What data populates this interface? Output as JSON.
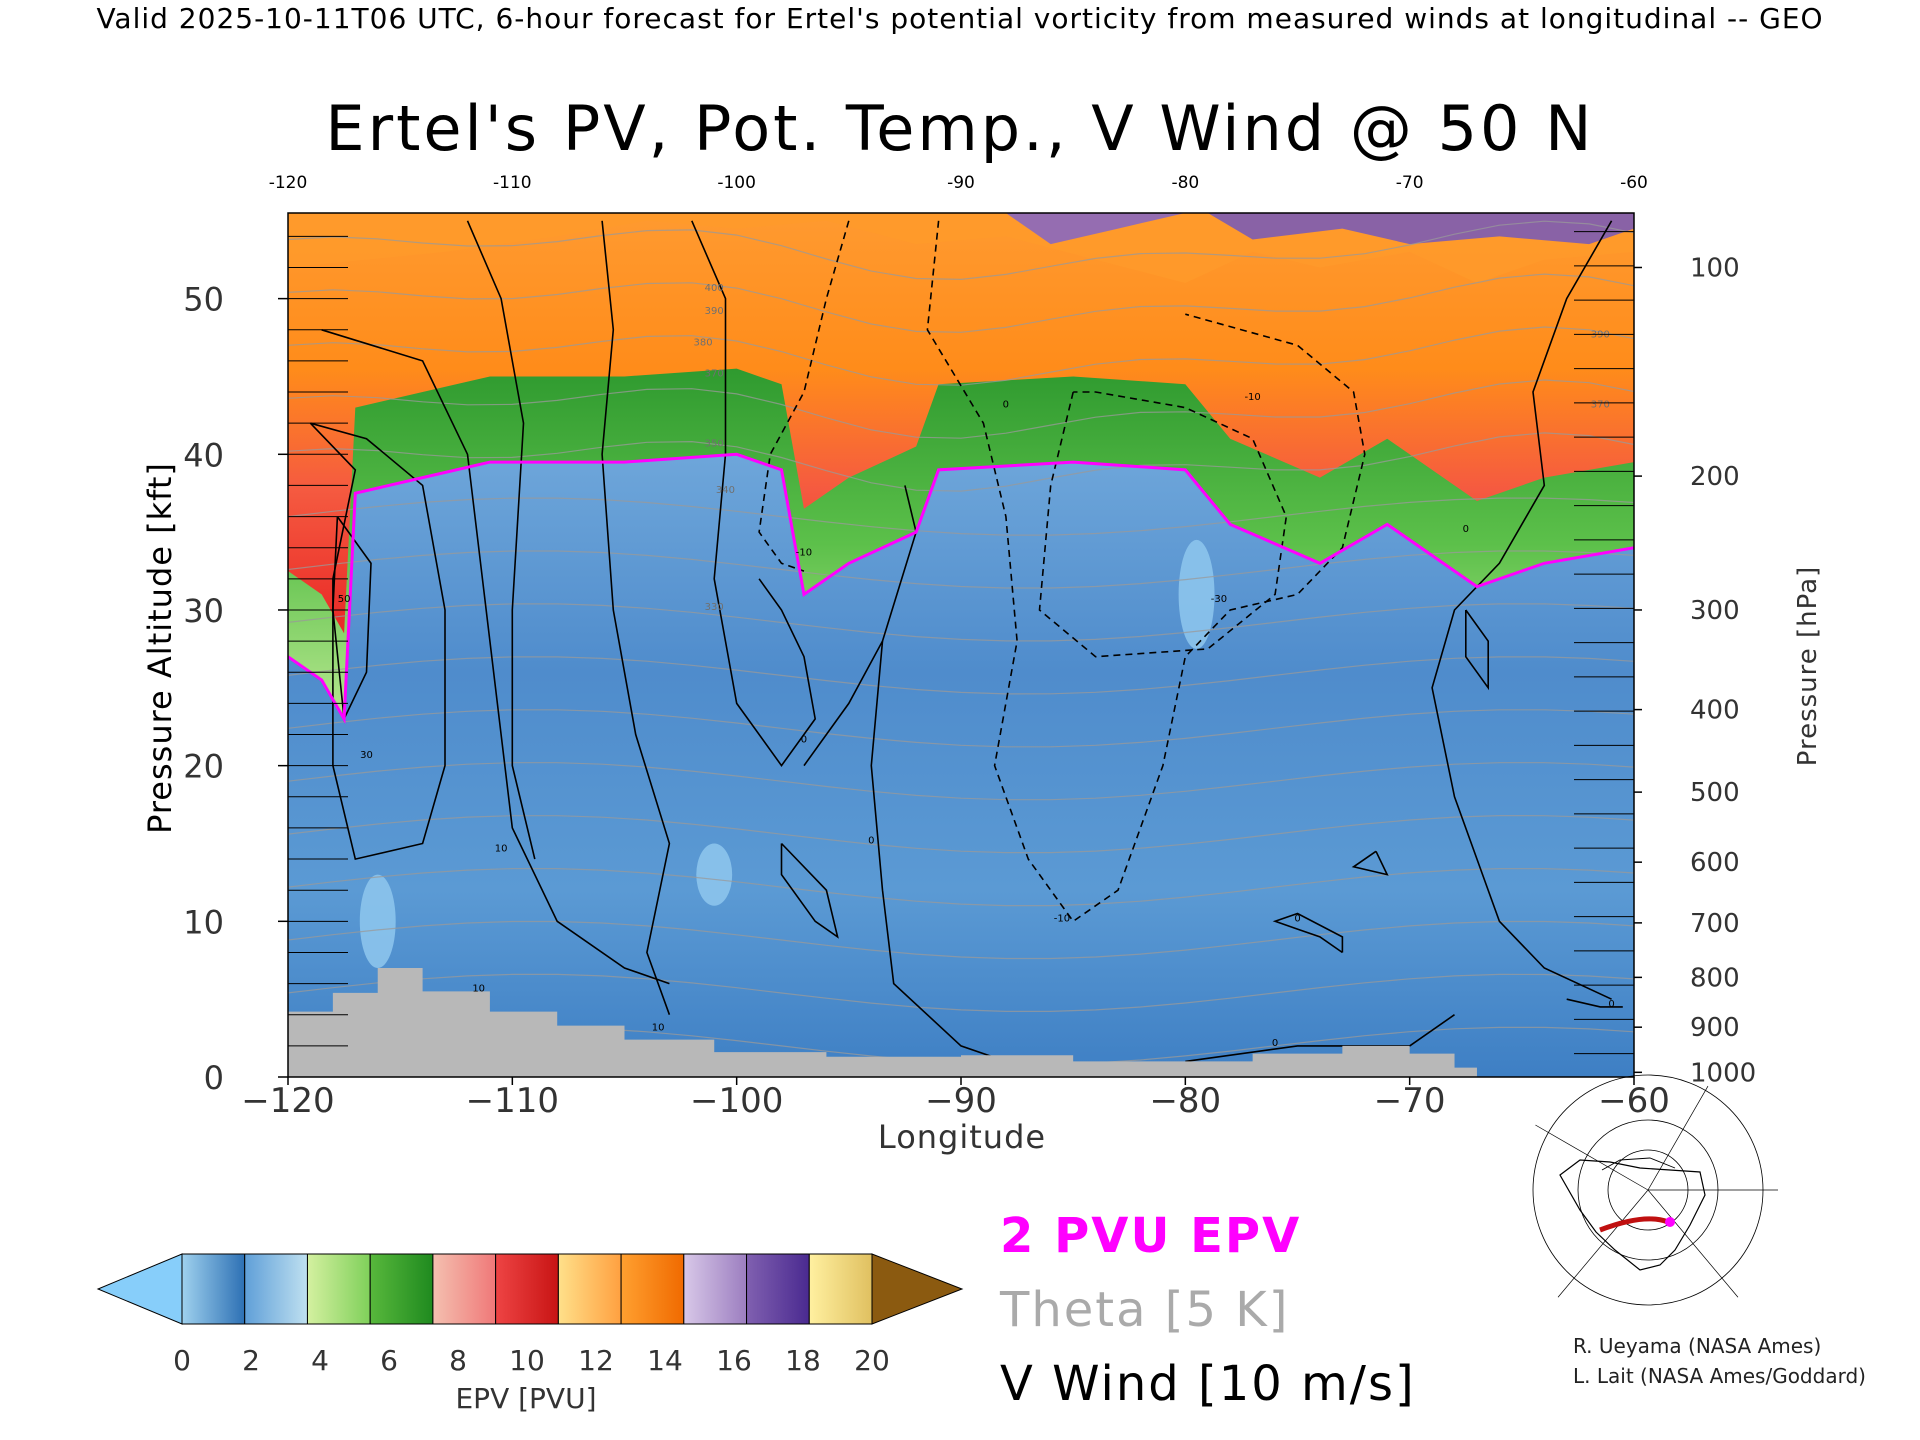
{
  "header": "Valid 2025-10-11T06 UTC, 6-hour forecast for Ertel's potential vorticity from measured winds at longitudinal -- GEO",
  "chart_data": {
    "type": "heatmap",
    "title": "Ertel's PV, Pot. Temp., V Wind @ 50 N",
    "xlabel": "Longitude",
    "ylabel_left": "Pressure Altitude [kft]",
    "ylabel_right": "Pressure [hPa]",
    "xlim": [
      -120,
      -60
    ],
    "ylim_kft": [
      0,
      55.5
    ],
    "x_ticks_bottom": [
      "−120",
      "−110",
      "−100",
      "−90",
      "−80",
      "−70",
      "−60"
    ],
    "x_ticks_top": [
      "-120",
      "-110",
      "-100",
      "-90",
      "-80",
      "-70",
      "-60"
    ],
    "y_ticks_left": [
      {
        "value": 0,
        "label": "0"
      },
      {
        "value": 10,
        "label": "10"
      },
      {
        "value": 20,
        "label": "20"
      },
      {
        "value": 30,
        "label": "30"
      },
      {
        "value": 40,
        "label": "40"
      },
      {
        "value": 50,
        "label": "50"
      }
    ],
    "y_ticks_right": [
      {
        "kft": 52.0,
        "label": "100"
      },
      {
        "kft": 38.6,
        "label": "200"
      },
      {
        "kft": 30.0,
        "label": "300"
      },
      {
        "kft": 23.6,
        "label": "400"
      },
      {
        "kft": 18.3,
        "label": "500"
      },
      {
        "kft": 13.8,
        "label": "600"
      },
      {
        "kft": 9.9,
        "label": "700"
      },
      {
        "kft": 6.4,
        "label": "800"
      },
      {
        "kft": 3.2,
        "label": "900"
      },
      {
        "kft": 0.3,
        "label": "1000"
      }
    ],
    "pv_2pvu_height_kft": [
      {
        "lon": -120,
        "kft": 27.0
      },
      {
        "lon": -118.5,
        "kft": 25.5
      },
      {
        "lon": -117.5,
        "kft": 23.0
      },
      {
        "lon": -117.0,
        "kft": 37.5
      },
      {
        "lon": -114,
        "kft": 38.5
      },
      {
        "lon": -111,
        "kft": 39.5
      },
      {
        "lon": -105,
        "kft": 39.5
      },
      {
        "lon": -100,
        "kft": 40.0
      },
      {
        "lon": -98,
        "kft": 39.0
      },
      {
        "lon": -97,
        "kft": 31.0
      },
      {
        "lon": -95,
        "kft": 33.0
      },
      {
        "lon": -92,
        "kft": 35.0
      },
      {
        "lon": -91,
        "kft": 39.0
      },
      {
        "lon": -85,
        "kft": 39.5
      },
      {
        "lon": -80,
        "kft": 39.0
      },
      {
        "lon": -78,
        "kft": 35.5
      },
      {
        "lon": -74,
        "kft": 33.0
      },
      {
        "lon": -71,
        "kft": 35.5
      },
      {
        "lon": -67,
        "kft": 31.5
      },
      {
        "lon": -64,
        "kft": 33.0
      },
      {
        "lon": -60,
        "kft": 34.0
      }
    ],
    "terrain_kft": [
      {
        "lon": -120,
        "kft": 4.2
      },
      {
        "lon": -118,
        "kft": 5.4
      },
      {
        "lon": -116,
        "kft": 7.0
      },
      {
        "lon": -114,
        "kft": 5.5
      },
      {
        "lon": -111,
        "kft": 4.2
      },
      {
        "lon": -108,
        "kft": 3.3
      },
      {
        "lon": -105,
        "kft": 2.4
      },
      {
        "lon": -101,
        "kft": 1.6
      },
      {
        "lon": -96,
        "kft": 1.3
      },
      {
        "lon": -90,
        "kft": 1.4
      },
      {
        "lon": -85,
        "kft": 1.0
      },
      {
        "lon": -80,
        "kft": 1.0
      },
      {
        "lon": -77,
        "kft": 1.5
      },
      {
        "lon": -73,
        "kft": 2.0
      },
      {
        "lon": -70,
        "kft": 1.5
      },
      {
        "lon": -68,
        "kft": 0.6
      },
      {
        "lon": -67,
        "kft": 0.0
      }
    ],
    "wind_contour_labels": [
      {
        "lon": -117.5,
        "kft": 30.5,
        "label": "50"
      },
      {
        "lon": -116.5,
        "kft": 20.5,
        "label": "30"
      },
      {
        "lon": -110.5,
        "kft": 14.5,
        "label": "10"
      },
      {
        "lon": -111.5,
        "kft": 5.5,
        "label": "10"
      },
      {
        "lon": -103.5,
        "kft": 3.0,
        "label": "10"
      },
      {
        "lon": -97,
        "kft": 21.5,
        "label": "0"
      },
      {
        "lon": -94,
        "kft": 15.0,
        "label": "0"
      },
      {
        "lon": -97,
        "kft": 33.5,
        "label": "-10"
      },
      {
        "lon": -88,
        "kft": 43.0,
        "label": "0"
      },
      {
        "lon": -85.5,
        "kft": 10.0,
        "label": "-10"
      },
      {
        "lon": -78.5,
        "kft": 30.5,
        "label": "-30"
      },
      {
        "lon": -77,
        "kft": 43.5,
        "label": "-10"
      },
      {
        "lon": -75,
        "kft": 10.0,
        "label": "0"
      },
      {
        "lon": -76,
        "kft": 2.0,
        "label": "0"
      },
      {
        "lon": -67.5,
        "kft": 35.0,
        "label": "0"
      },
      {
        "lon": -61,
        "kft": 4.5,
        "label": "0"
      }
    ],
    "theta_contour_labels": [
      {
        "lon": -101,
        "kft": 50.5,
        "label": "400"
      },
      {
        "lon": -101,
        "kft": 49.0,
        "label": "390"
      },
      {
        "lon": -101.5,
        "kft": 47.0,
        "label": "380"
      },
      {
        "lon": -101,
        "kft": 45.0,
        "label": "370"
      },
      {
        "lon": -101,
        "kft": 40.5,
        "label": "350"
      },
      {
        "lon": -100.5,
        "kft": 37.5,
        "label": "340"
      },
      {
        "lon": -101,
        "kft": 30.0,
        "label": "330"
      },
      {
        "lon": -61.5,
        "kft": 47.5,
        "label": "390"
      },
      {
        "lon": -61.5,
        "kft": 43.0,
        "label": "370"
      }
    ],
    "colorbar": {
      "label": "EPV [PVU]",
      "ticks": [
        "0",
        "2",
        "4",
        "6",
        "8",
        "10",
        "12",
        "14",
        "16",
        "18",
        "20"
      ],
      "under_color": "#87cefa",
      "over_color": "#8b5a10",
      "segments": [
        [
          "#9fd1ee",
          "#2d70b4"
        ],
        [
          "#5f9fd8",
          "#bfe0f0"
        ],
        [
          "#d4f0a0",
          "#7fd05a"
        ],
        [
          "#58b83c",
          "#1f8a1f"
        ],
        [
          "#f4c0b0",
          "#f07878"
        ],
        [
          "#ee4444",
          "#c81414"
        ],
        [
          "#ffe08a",
          "#ffa040"
        ],
        [
          "#ffa030",
          "#f06a00"
        ],
        [
          "#d8c8e8",
          "#9c7ec0"
        ],
        [
          "#8060b0",
          "#4a2a90"
        ],
        [
          "#fff0a0",
          "#e0c060"
        ]
      ]
    }
  },
  "legend": {
    "pv": "2 PVU EPV",
    "theta": "Theta [5 K]",
    "wind": "V Wind [10 m/s]"
  },
  "credits": [
    "R. Ueyama (NASA Ames)",
    "L. Lait (NASA Ames/Goddard)"
  ],
  "colors": {
    "pv_contour": "#ff00ff",
    "terrain": "#b8b8b8",
    "strat_top": "#ff8c1a",
    "strat_red": "#ea2a2a",
    "tropopause_green": "#3aa83a",
    "trop_blue": "#5a97d0"
  }
}
